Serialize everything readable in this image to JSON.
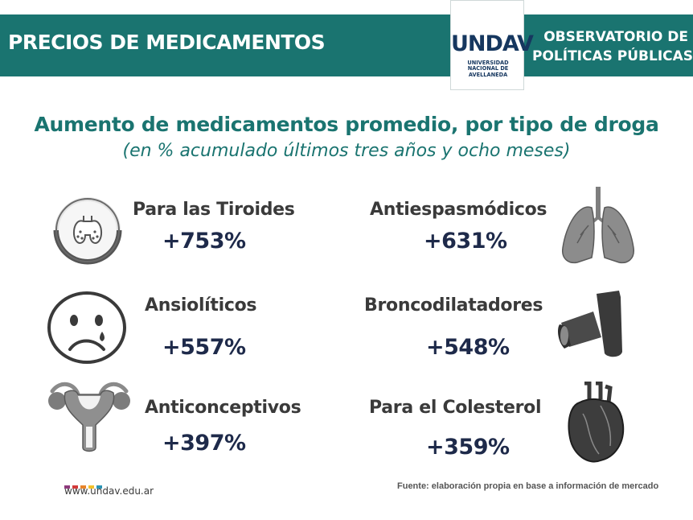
{
  "header": {
    "title": "PRECIOS DE MEDICAMENTOS",
    "logo_mark": "UNDAV",
    "logo_sub": [
      "UNIVERSIDAD",
      "NACIONAL DE",
      "AVELLANEDA"
    ],
    "observatory": [
      "OBSERVATORIO DE",
      "POLÍTICAS PÚBLICAS"
    ]
  },
  "chart_data": {
    "type": "table",
    "title": "Aumento de medicamentos promedio, por tipo de droga",
    "subtitle": "(en % acumulado últimos tres años y ocho meses)",
    "unit": "%",
    "categories": [
      "Para las Tiroides",
      "Antiespasmódicos",
      "Ansiolíticos",
      "Broncodilatadores",
      "Anticonceptivos",
      "Para el Colesterol"
    ],
    "values": [
      753,
      631,
      557,
      548,
      397,
      359
    ],
    "value_labels": [
      "+753%",
      "+631%",
      "+557%",
      "+548%",
      "+397%",
      "+359%"
    ],
    "icons": [
      "thyroid-icon",
      "lungs-icon",
      "sad-face-icon",
      "inhaler-icon",
      "uterus-icon",
      "heart-icon"
    ]
  },
  "footer": {
    "website": "www.undav.edu.ar",
    "source": "Fuente: elaboración propia en base a información de mercado",
    "dot_colors": [
      "#8e3a7c",
      "#d23a3a",
      "#e8842a",
      "#f2c02a",
      "#2a93b4"
    ]
  },
  "colors": {
    "brand": "#1a7470",
    "value": "#1e2a4a",
    "icon_gray": "#8a8a8a"
  }
}
